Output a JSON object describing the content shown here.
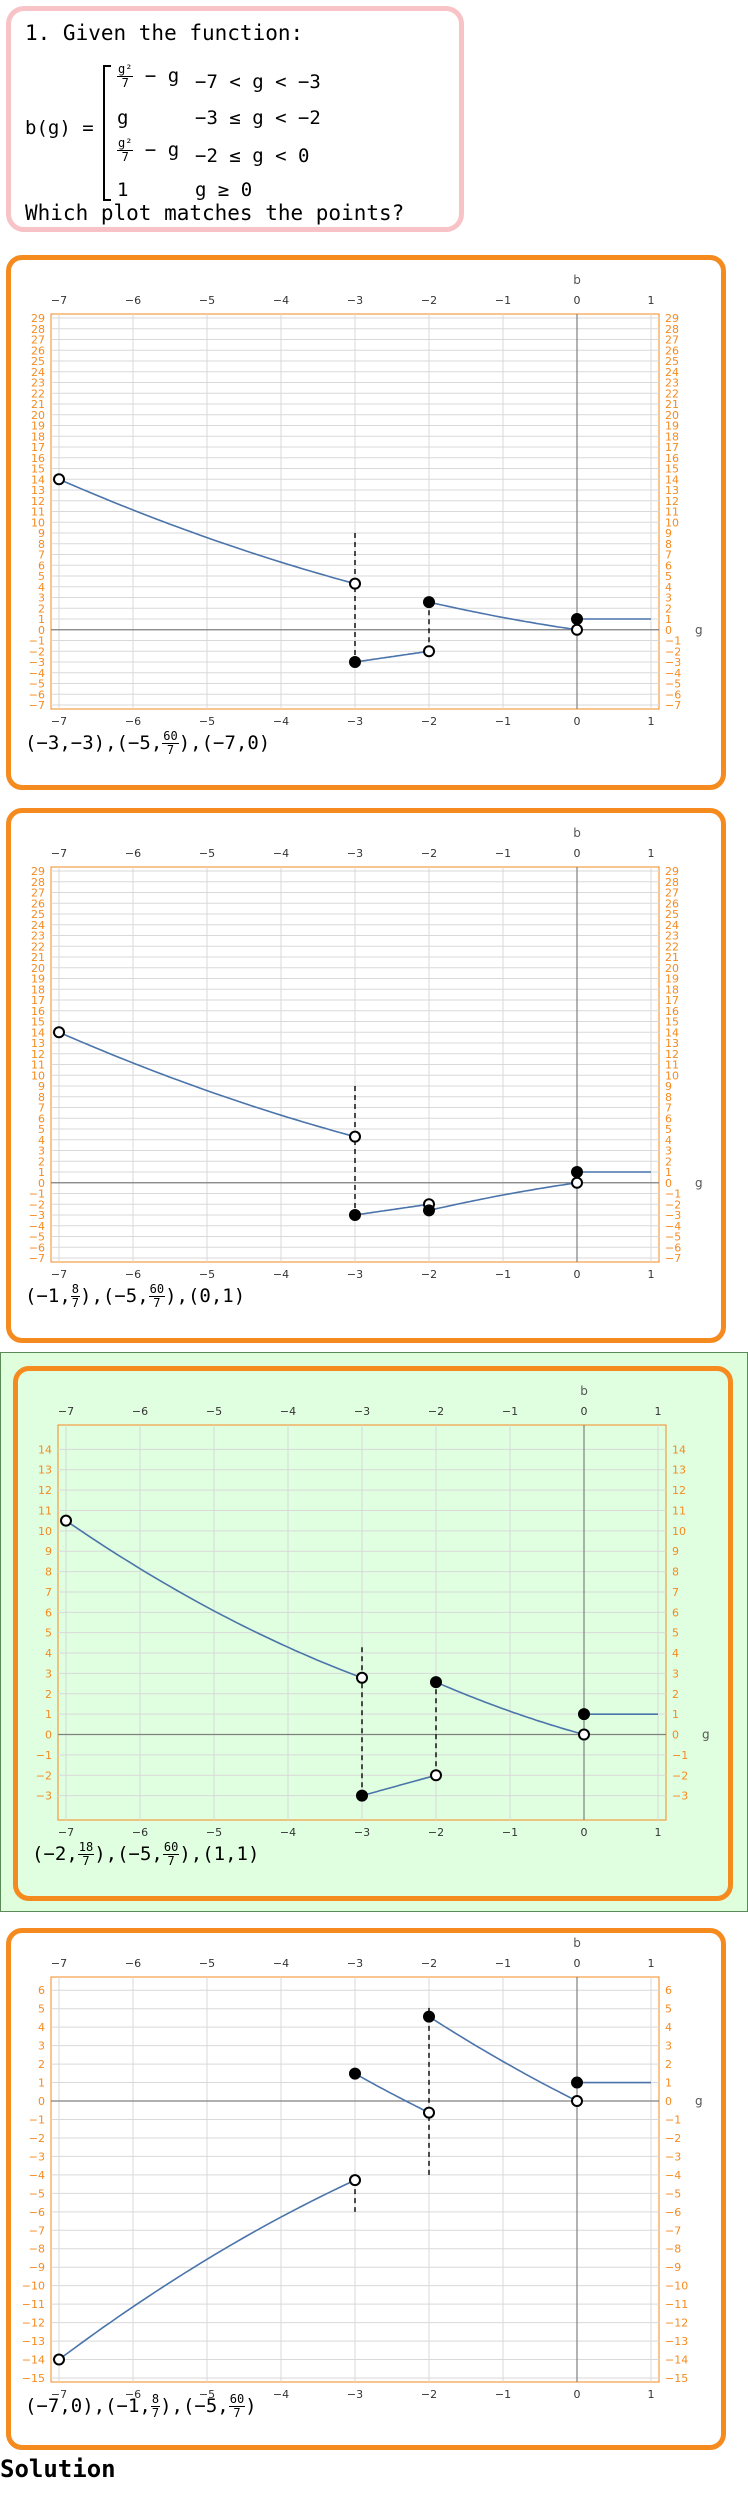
{
  "question": {
    "number_line": "1. Given the function:",
    "function_name": "b(g) =",
    "pieces": [
      {
        "num": "g²",
        "den": "7",
        "rest": "− g",
        "condition": "−7 < g < −3"
      },
      {
        "expr": "g",
        "condition": "−3 ≤ g < −2"
      },
      {
        "num": "g²",
        "den": "7",
        "rest": "− g",
        "condition": "−2 ≤ g < 0"
      },
      {
        "expr": "1",
        "condition": "g ≥ 0"
      }
    ],
    "prompt": "Which plot matches the points?"
  },
  "axis_labels": {
    "x": "g",
    "y": "b"
  },
  "colors": {
    "accent": "#f58a1f",
    "curve": "#4a74aa",
    "grid": "#d9d9d9",
    "axis": "#808080",
    "tick_text": "#f58a1f",
    "selected_bg": "#e0ffe0"
  },
  "options": [
    {
      "points_label": [
        {
          "t": "(−3,−3),(−5,"
        },
        {
          "num": "60",
          "den": "7"
        },
        {
          "t": "),(−7,0)"
        }
      ],
      "chart_data": {
        "type": "line",
        "xlim": [
          -7,
          1
        ],
        "ylim": [
          -7,
          29
        ],
        "x_ticks": [
          -7,
          -6,
          -5,
          -4,
          -3,
          -2,
          -1,
          0,
          1
        ],
        "y_ticks": [
          -7,
          -6,
          -5,
          -4,
          -3,
          -2,
          -1,
          0,
          1,
          2,
          3,
          4,
          5,
          6,
          7,
          8,
          9,
          10,
          11,
          12,
          13,
          14,
          15,
          16,
          17,
          18,
          19,
          20,
          21,
          22,
          23,
          24,
          25,
          26,
          27,
          28,
          29
        ],
        "pieces": [
          {
            "fn": "g^2/7-g",
            "from": -7,
            "to": -3,
            "open_start": true,
            "open_end": true
          },
          {
            "fn": "g",
            "from": -3,
            "to": -2,
            "closed_start": true,
            "open_end": true
          },
          {
            "fn": "g^2/7-g",
            "from": -2,
            "to": 0,
            "closed_start": true,
            "open_end": true
          },
          {
            "fn": "1",
            "from": 0,
            "to": 1,
            "closed_start": true
          }
        ],
        "jumps": [
          [
            -3,
            9.0,
            -3
          ],
          [
            -2,
            -2,
            2.5714
          ]
        ]
      }
    },
    {
      "points_label": [
        {
          "t": "(−1,"
        },
        {
          "num": "8",
          "den": "7"
        },
        {
          "t": "),(−5,"
        },
        {
          "num": "60",
          "den": "7"
        },
        {
          "t": "),(0,1)"
        }
      ],
      "chart_data": {
        "type": "line",
        "xlim": [
          -7,
          1
        ],
        "ylim": [
          -7,
          29
        ],
        "x_ticks": [
          -7,
          -6,
          -5,
          -4,
          -3,
          -2,
          -1,
          0,
          1
        ],
        "y_ticks": [
          -7,
          -6,
          -5,
          -4,
          -3,
          -2,
          -1,
          0,
          1,
          2,
          3,
          4,
          5,
          6,
          7,
          8,
          9,
          10,
          11,
          12,
          13,
          14,
          15,
          16,
          17,
          18,
          19,
          20,
          21,
          22,
          23,
          24,
          25,
          26,
          27,
          28,
          29
        ],
        "pieces": [
          {
            "fn": "g^2/7-g",
            "from": -7,
            "to": -3,
            "open_start": true,
            "open_end": true
          },
          {
            "fn": "g",
            "from": -3,
            "to": -2,
            "closed_start": true,
            "open_end": true
          },
          {
            "fn": "-g^2/7+g",
            "from": -2,
            "to": 0,
            "closed_start": true,
            "open_end": true
          },
          {
            "fn": "1",
            "from": 0,
            "to": 1,
            "closed_start": true
          }
        ],
        "jumps": [
          [
            -3,
            9.0,
            -3
          ]
        ]
      }
    },
    {
      "selected": true,
      "points_label": [
        {
          "t": "(−2,"
        },
        {
          "num": "18",
          "den": "7"
        },
        {
          "t": "),(−5,"
        },
        {
          "num": "60",
          "den": "7"
        },
        {
          "t": "),(1,1)"
        }
      ],
      "chart_data": {
        "type": "line",
        "xlim": [
          -7,
          1
        ],
        "ylim": [
          -4,
          15
        ],
        "x_ticks": [
          -7,
          -6,
          -5,
          -4,
          -3,
          -2,
          -1,
          0,
          1
        ],
        "y_ticks": [
          -3,
          -2,
          -1,
          0,
          1,
          2,
          3,
          4,
          5,
          6,
          7,
          8,
          9,
          10,
          11,
          12,
          13,
          14
        ],
        "pieces": [
          {
            "fn": "g^2/7-g/2",
            "from": -7,
            "to": -3,
            "open_start": true,
            "open_end": true
          },
          {
            "fn": "g",
            "from": -3,
            "to": -2,
            "closed_start": true,
            "open_end": true
          },
          {
            "fn": "g^2/7-g",
            "from": -2,
            "to": 0,
            "closed_start": true,
            "open_end": true
          },
          {
            "fn": "1",
            "from": 0,
            "to": 1,
            "closed_start": true
          }
        ],
        "jumps": [
          [
            -3,
            4.2857,
            -3
          ],
          [
            -2,
            -2,
            2.5714
          ]
        ]
      }
    },
    {
      "points_label": [
        {
          "t": "(−7,0),(−1,"
        },
        {
          "num": "8",
          "den": "7"
        },
        {
          "t": "),(−5,"
        },
        {
          "num": "60",
          "den": "7"
        },
        {
          "t": ")"
        }
      ],
      "chart_data": {
        "type": "line",
        "xlim": [
          -7,
          1
        ],
        "ylim": [
          -15,
          6.5
        ],
        "x_ticks": [
          -7,
          -6,
          -5,
          -4,
          -3,
          -2,
          -1,
          0,
          1
        ],
        "y_ticks": [
          -15,
          -14,
          -13,
          -12,
          -11,
          -10,
          -9,
          -8,
          -7,
          -6,
          -5,
          -4,
          -3,
          -2,
          -1,
          0,
          1,
          2,
          3,
          4,
          5,
          6
        ],
        "pieces": [
          {
            "fn": "-g^2/7+g",
            "from": -7,
            "to": -3,
            "open_start": true,
            "open_end": true
          },
          {
            "fn": "g^2/7-g*1.4-4",
            "from": -3,
            "to": -2,
            "closed_start": true,
            "open_end": true
          },
          {
            "fn": "g^2/7-g*2",
            "from": -2,
            "to": 0,
            "closed_start": true,
            "open_end": true
          },
          {
            "fn": "1",
            "from": 0,
            "to": 1,
            "closed_start": true
          }
        ],
        "jumps": [
          [
            -3,
            -4.2857,
            -6
          ],
          [
            -2,
            -4,
            5.1428
          ]
        ]
      }
    }
  ],
  "solution_label": "Solution"
}
